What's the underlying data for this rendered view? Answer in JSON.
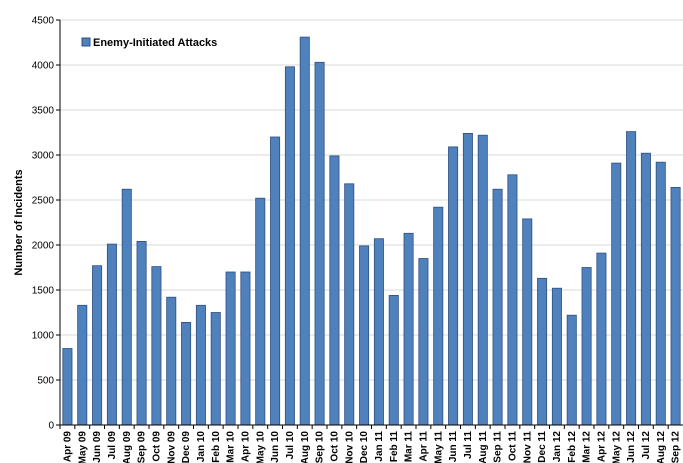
{
  "chart_data": {
    "type": "bar",
    "title": "",
    "xlabel": "",
    "ylabel": "Number of Incidents",
    "ylim": [
      0,
      4500
    ],
    "yticks": [
      0,
      500,
      1000,
      1500,
      2000,
      2500,
      3000,
      3500,
      4000,
      4500
    ],
    "grid": true,
    "legend_position": "top-left",
    "colors": {
      "bar": "#4f81bd",
      "bar_edge": "#2f4f7f",
      "grid": "#d9d9d9"
    },
    "categories": [
      "Apr 09",
      "May 09",
      "Jun 09",
      "Jul 09",
      "Aug 09",
      "Sep 09",
      "Oct 09",
      "Nov 09",
      "Dec 09",
      "Jan 10",
      "Feb 10",
      "Mar 10",
      "Apr 10",
      "May 10",
      "Jun 10",
      "Jul 10",
      "Aug 10",
      "Sep 10",
      "Oct 10",
      "Nov 10",
      "Dec 10",
      "Jan 11",
      "Feb 11",
      "Mar 11",
      "Apr 11",
      "May 11",
      "Jun 11",
      "Jul 11",
      "Aug 11",
      "Sep 11",
      "Oct 11",
      "Nov 11",
      "Dec 11",
      "Jan 12",
      "Feb 12",
      "Mar 12",
      "Apr 12",
      "May 12",
      "Jun 12",
      "Jul 12",
      "Aug 12",
      "Sep 12"
    ],
    "series": [
      {
        "name": "Enemy-Initiated Attacks",
        "values": [
          850,
          1330,
          1770,
          2010,
          2620,
          2040,
          1760,
          1420,
          1140,
          1330,
          1250,
          1700,
          1700,
          2520,
          3200,
          3980,
          4310,
          4030,
          2990,
          2680,
          1990,
          2070,
          1440,
          2130,
          1850,
          2420,
          3090,
          3240,
          3220,
          2620,
          2780,
          2290,
          1630,
          1520,
          1220,
          1750,
          1910,
          2910,
          3260,
          3020,
          2920,
          2640
        ]
      }
    ]
  }
}
